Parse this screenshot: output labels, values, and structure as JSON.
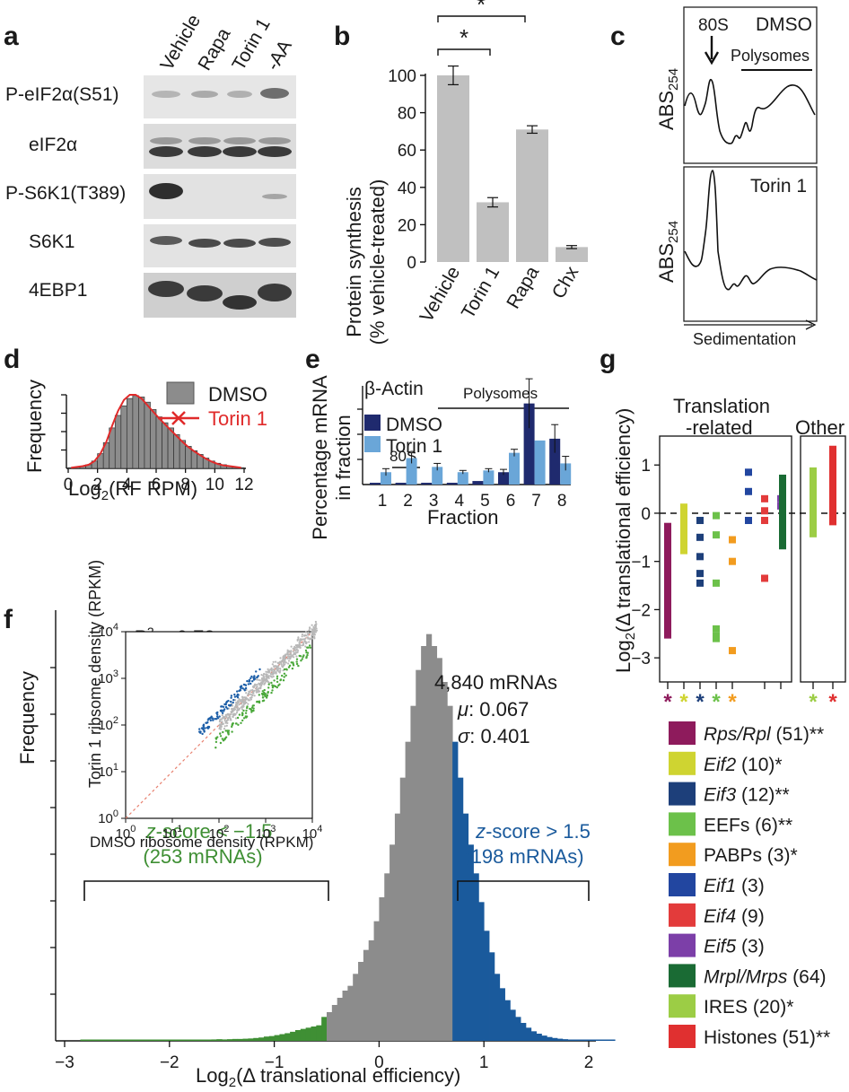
{
  "panels": {
    "a": {
      "label": "a",
      "columns": [
        "Vehicle",
        "Rapa",
        "Torin 1",
        "-AA"
      ],
      "rows": [
        "P-eIF2α(S51)",
        "eIF2α",
        "P-S6K1(T389)",
        "S6K1",
        "4EBP1"
      ]
    },
    "b": {
      "label": "b",
      "ylabel_line1": "Protein synthesis",
      "ylabel_line2": "(% vehicle-treated)",
      "sig_marks": [
        "*",
        "*"
      ]
    },
    "c": {
      "label": "c",
      "top": {
        "ylabel": "ABS",
        "ylabel_sub": "254",
        "arrow_label": "80S",
        "title": "DMSO",
        "bracket_label": "Polysomes"
      },
      "bottom": {
        "ylabel": "ABS",
        "ylabel_sub": "254",
        "title": "Torin 1"
      },
      "xlabel": "Sedimentation"
    },
    "d": {
      "label": "d",
      "ylabel": "Frequency",
      "xlabel_main": "Log",
      "xlabel_sub": "2",
      "xlabel_rest": "(RF RPM)",
      "legend": [
        "DMSO",
        "Torin 1"
      ]
    },
    "e": {
      "label": "e",
      "title": "β-Actin",
      "bracket_label": "Polysomes",
      "small_bracket_label": "80S",
      "ylabel_line1": "Percentage mRNA",
      "ylabel_line2": "in fraction",
      "xlabel": "Fraction",
      "legend": [
        "DMSO",
        "Torin 1"
      ]
    },
    "f": {
      "label": "f",
      "ylabel": "Frequency",
      "xlabel_main": "Log",
      "xlabel_sub": "2",
      "xlabel_rest": "(Δ translational efficiency)",
      "stats": {
        "n": "4,840 mRNAs",
        "mu_label": "μ",
        "mu": ": 0.067",
        "sigma_label": "σ",
        "sigma": ": 0.401"
      },
      "left_group": {
        "line1": "z-score < −1.5",
        "line2": "(253 mRNAs)"
      },
      "right_group": {
        "line1": "z-score > 1.5",
        "line2": "(198 mRNAs)"
      },
      "inset": {
        "r2_label": "R",
        "r2_sup": "2",
        "r2_value": " = 0.78",
        "ylabel": "Torin 1 ribsome density (RPKM)",
        "xlabel": "DMSO ribosome density (RPKM)",
        "tick_base": "10",
        "tick_exps": [
          "0",
          "1",
          "2",
          "3",
          "4"
        ]
      }
    },
    "g": {
      "label": "g",
      "group1_line1": "Translation",
      "group1_line2": "-related",
      "group2": "Other",
      "ylabel_main": "Log",
      "ylabel_sub": "2",
      "ylabel_rest": "(Δ translational efficiency)",
      "legend": [
        {
          "name": "Rps/Rpl",
          "count": " (51)**",
          "italic": true,
          "color": "#8e1b5c"
        },
        {
          "name": "Eif2",
          "count": " (10)*",
          "italic": true,
          "color": "#cfd431"
        },
        {
          "name": "Eif3",
          "count": " (12)**",
          "italic": true,
          "color": "#1d3f7a"
        },
        {
          "name": "EEFs",
          "count": " (6)**",
          "italic": false,
          "color": "#6cc14a"
        },
        {
          "name": "PABPs",
          "count": " (3)*",
          "italic": false,
          "color": "#f29c1f"
        },
        {
          "name": "Eif1",
          "count": " (3)",
          "italic": true,
          "color": "#2246a0"
        },
        {
          "name": "Eif4",
          "count": " (9)",
          "italic": true,
          "color": "#e33b3b"
        },
        {
          "name": "Eif5",
          "count": " (3)",
          "italic": true,
          "color": "#7c3fa8"
        },
        {
          "name": "Mrpl/Mrps",
          "count": " (64)",
          "italic": true,
          "color": "#1a6b34"
        },
        {
          "name": "IRES",
          "count": " (20)*",
          "italic": false,
          "color": "#9ccd45"
        },
        {
          "name": "Histones",
          "count": " (51)**",
          "italic": false,
          "color": "#e03030"
        }
      ],
      "star_marks": [
        "*",
        "*",
        "*",
        "*",
        "*",
        "*",
        "*"
      ]
    }
  },
  "chart_data": [
    {
      "panel": "b",
      "type": "bar",
      "categories": [
        "Vehicle",
        "Torin 1",
        "Rapa",
        "Chx"
      ],
      "values": [
        100,
        32,
        71,
        8
      ],
      "errors": [
        5,
        2.5,
        2,
        0.8
      ],
      "ylim": [
        0,
        100
      ],
      "yticks": [
        0,
        20,
        40,
        60,
        80,
        100
      ],
      "color": "#c0c0c0"
    },
    {
      "panel": "d",
      "type": "bar",
      "xlim": [
        0,
        12
      ],
      "xticks": [
        0,
        2,
        4,
        6,
        8,
        10,
        12
      ],
      "series": [
        {
          "name": "DMSO",
          "values": [
            0.01,
            0.02,
            0.03,
            0.05,
            0.1,
            0.2,
            0.35,
            0.55,
            0.72,
            0.85,
            0.95,
            0.99,
            0.97,
            0.9,
            0.8,
            0.7,
            0.62,
            0.55,
            0.46,
            0.38,
            0.3,
            0.24,
            0.19,
            0.14,
            0.1,
            0.07,
            0.05,
            0.03,
            0.02,
            0.01
          ]
        },
        {
          "name": "Torin 1",
          "values": [
            0.01,
            0.02,
            0.03,
            0.05,
            0.1,
            0.2,
            0.36,
            0.58,
            0.78,
            0.93,
            1.0,
            1.0,
            0.95,
            0.86,
            0.77,
            0.68,
            0.6,
            0.52,
            0.44,
            0.36,
            0.29,
            0.23,
            0.18,
            0.13,
            0.09,
            0.06,
            0.04,
            0.03,
            0.02,
            0.01
          ]
        }
      ]
    },
    {
      "panel": "e",
      "type": "bar",
      "categories": [
        "1",
        "2",
        "3",
        "4",
        "5",
        "6",
        "7",
        "8"
      ],
      "series": [
        {
          "name": "DMSO",
          "values": [
            0.5,
            0.5,
            0.5,
            0.5,
            1,
            3.5,
            23,
            13
          ],
          "errors": [
            0,
            0,
            0,
            0,
            0,
            0.8,
            7,
            4
          ]
        },
        {
          "name": "Torin 1",
          "values": [
            3.5,
            7.5,
            5,
            3.5,
            4,
            9,
            12.5,
            6
          ],
          "errors": [
            1,
            1.5,
            1,
            0.5,
            0.5,
            1,
            0,
            2
          ]
        }
      ],
      "colors": [
        "#1f2a6e",
        "#6aa6d8"
      ]
    },
    {
      "panel": "f",
      "type": "bar",
      "xlim": [
        -3,
        2
      ],
      "xticks": [
        -3,
        -2,
        -1,
        0,
        1,
        2
      ],
      "bin_start": -2.85,
      "bin_width": 0.05,
      "values": [
        1,
        1,
        1,
        1,
        0,
        1,
        1,
        1,
        1,
        1,
        1,
        0,
        1,
        1,
        1,
        1,
        1,
        2,
        2,
        3,
        3,
        3,
        4,
        4,
        5,
        6,
        7,
        6,
        7,
        8,
        8,
        9,
        10,
        12,
        14,
        18,
        20,
        24,
        28,
        32,
        38,
        45,
        50,
        55,
        60,
        65,
        100,
        120,
        150,
        180,
        210,
        230,
        280,
        330,
        380,
        420,
        500,
        600,
        700,
        820,
        950,
        1100,
        1250,
        1400,
        1550,
        1650,
        1700,
        1650,
        1600,
        1500,
        1400,
        1250,
        1100,
        950,
        820,
        700,
        580,
        460,
        370,
        280,
        220,
        170,
        130,
        100,
        75,
        55,
        40,
        30,
        22,
        16,
        12,
        9,
        7,
        5,
        4,
        3,
        2,
        2,
        1,
        1,
        1,
        1
      ],
      "ylim": [
        0,
        1800
      ],
      "colors": {
        "low": "#3f8f34",
        "mid": "#8c8c8c",
        "high": "#1a5a9c"
      },
      "low_cut": -0.52,
      "high_cut": 0.68
    },
    {
      "panel": "g",
      "type": "scatter",
      "ylim": [
        -3.5,
        1.6
      ],
      "yticks": [
        -3,
        -2,
        -1,
        0,
        1
      ],
      "ytick_labels": [
        "−3",
        "−2",
        "−1",
        "0",
        "1"
      ],
      "groups": [
        {
          "name": "Rps/Rpl",
          "color": "#8e1b5c",
          "values": [
            -0.2,
            -0.9,
            -1.5,
            -2.0,
            -2.4,
            -2.6
          ]
        },
        {
          "name": "Eif2",
          "color": "#cfd431",
          "values": [
            0.2,
            0.0,
            -0.3,
            -0.6,
            -0.85
          ]
        },
        {
          "name": "Eif3",
          "color": "#1d3f7a",
          "values": [
            -0.15,
            -0.5,
            -0.9,
            -1.25,
            -1.45
          ]
        },
        {
          "name": "EEFs",
          "color": "#6cc14a",
          "values": [
            -0.05,
            -0.45,
            -1.45,
            -2.4,
            -2.55,
            -2.6
          ]
        },
        {
          "name": "PABPs",
          "color": "#f29c1f",
          "values": [
            -0.55,
            -1.0,
            -2.85
          ]
        },
        {
          "name": "Eif1",
          "color": "#2246a0",
          "values": [
            0.85,
            0.45,
            -0.15
          ]
        },
        {
          "name": "Eif4",
          "color": "#e33b3b",
          "values": [
            0.3,
            0.05,
            -0.15,
            -1.35
          ]
        },
        {
          "name": "Eif5",
          "color": "#7c3fa8",
          "values": [
            0.3,
            0.15
          ]
        },
        {
          "name": "Mrpl/Mrps",
          "color": "#1a6b34",
          "values": [
            0.8,
            0.4,
            0.0,
            -0.3,
            -0.6,
            -0.75
          ]
        },
        {
          "name": "IRES",
          "color": "#9ccd45",
          "values": [
            0.95,
            0.6,
            0.3,
            0.0,
            -0.3,
            -0.5
          ]
        },
        {
          "name": "Histones",
          "color": "#e03030",
          "values": [
            1.4,
            1.0,
            0.6,
            0.2,
            -0.05,
            -0.25
          ]
        }
      ]
    }
  ]
}
